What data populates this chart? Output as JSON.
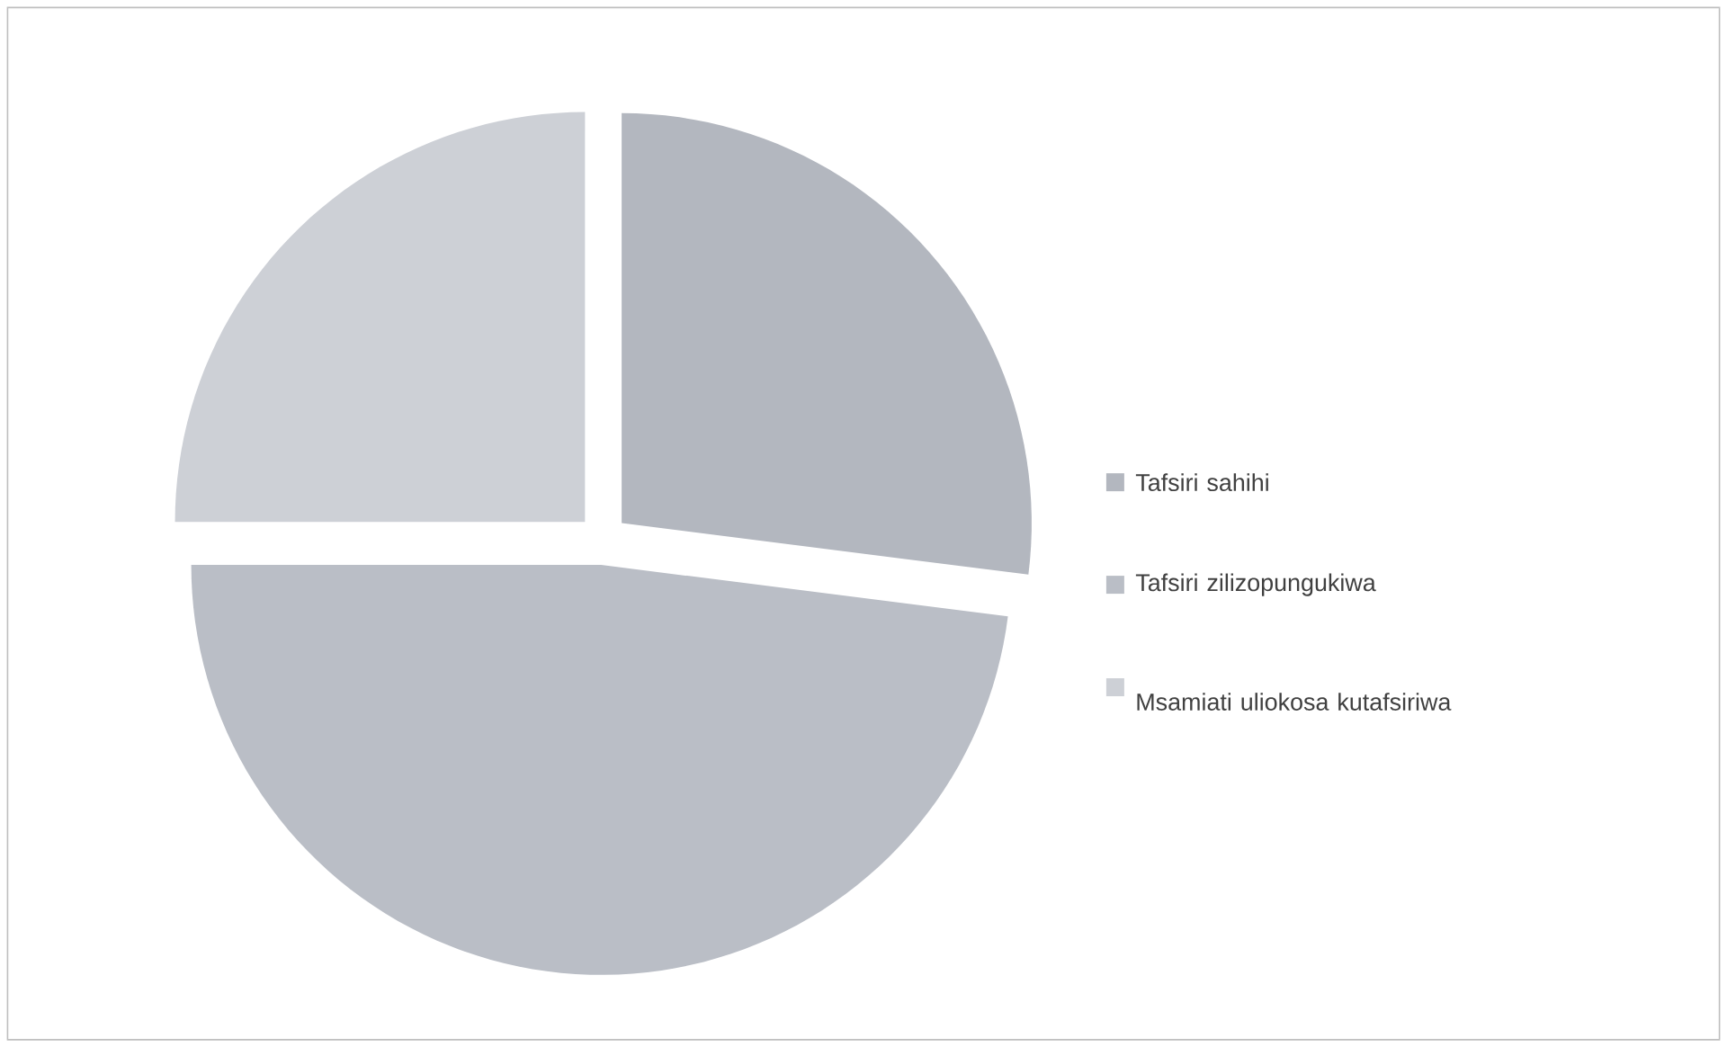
{
  "chart_data": {
    "type": "pie",
    "categories": [
      "Tafsiri sahihi",
      "Tafsiri zilizopungukiwa",
      "Msamiati uliokosa kutafsiriwa"
    ],
    "values": [
      27,
      48,
      25
    ],
    "colors": [
      "#b3b7bf",
      "#babec6",
      "#cdd0d6"
    ],
    "legend": "right"
  }
}
